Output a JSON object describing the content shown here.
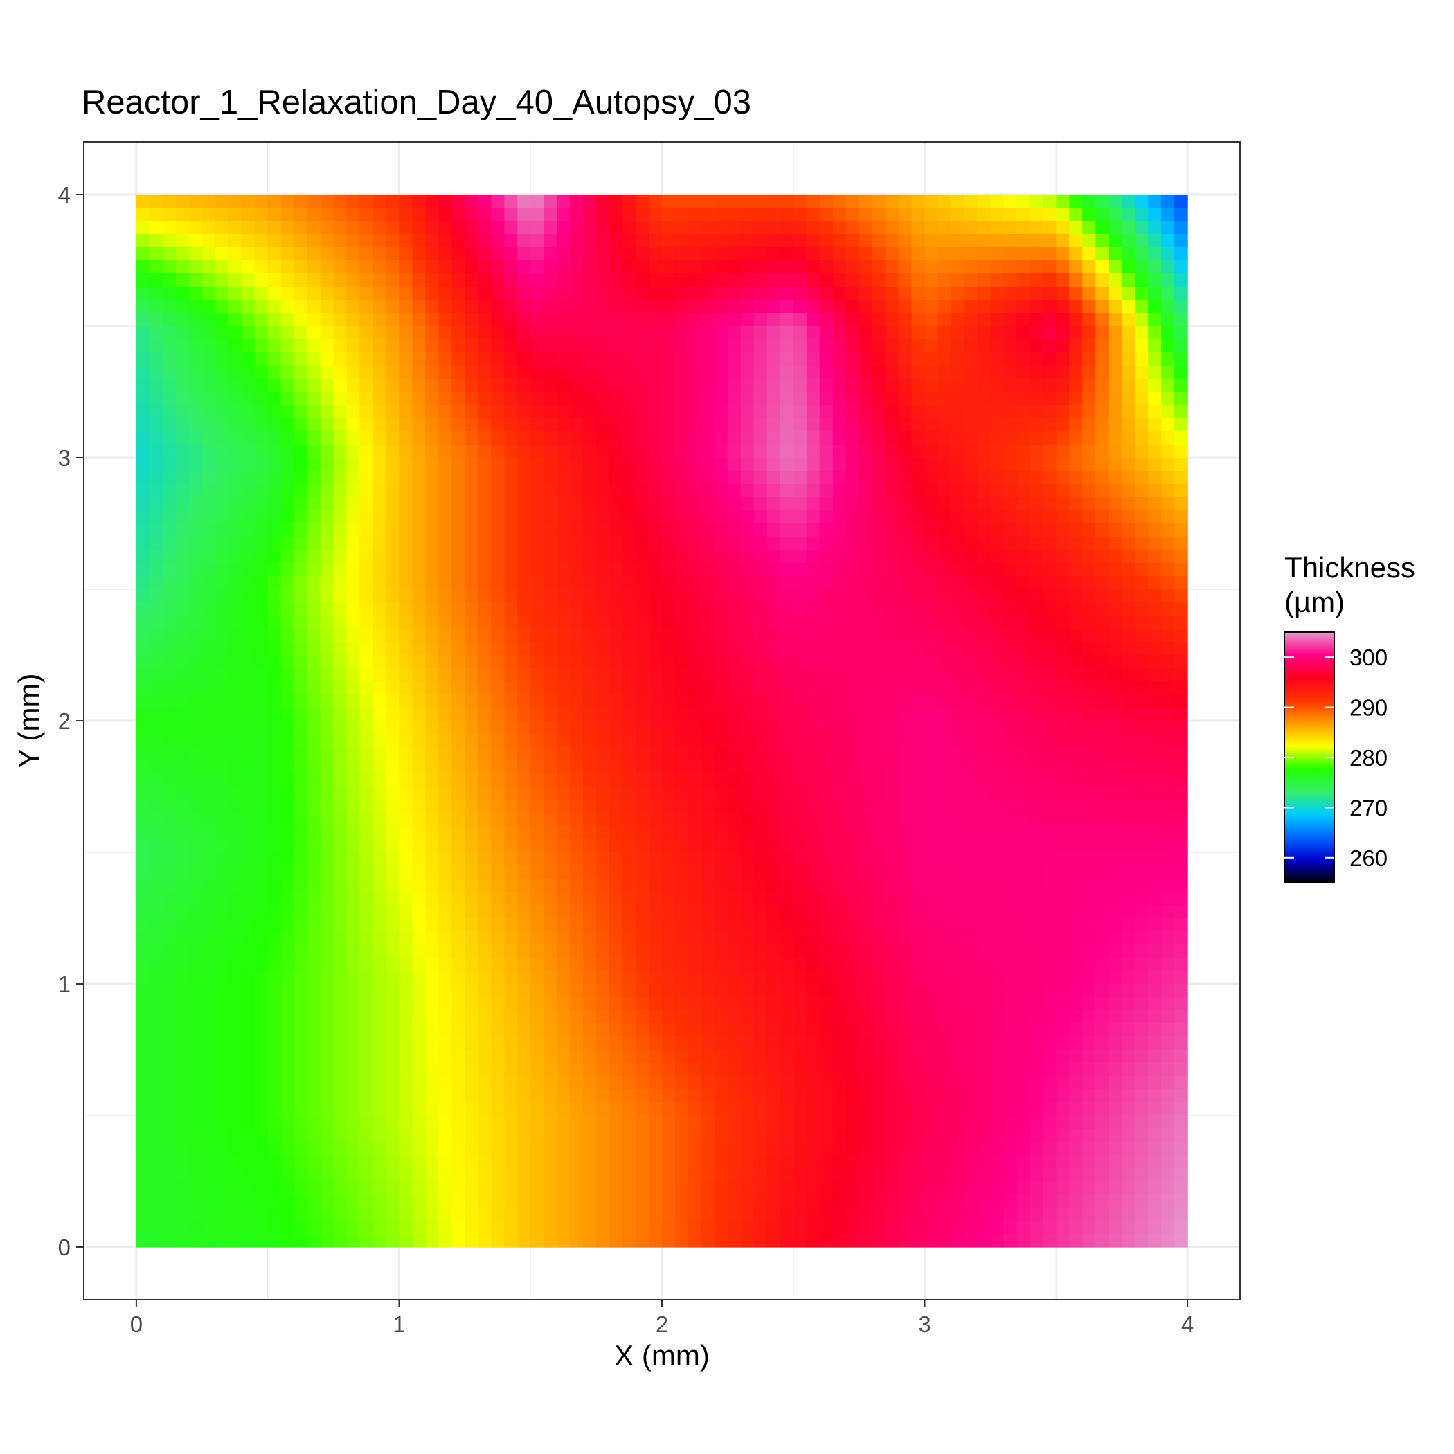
{
  "chart_data": {
    "type": "heatmap",
    "title": "Reactor_1_Relaxation_Day_40_Autopsy_03",
    "xlabel": "X (mm)",
    "ylabel": "Y (mm)",
    "xlim": [
      -0.2,
      4.2
    ],
    "ylim": [
      -0.2,
      4.2
    ],
    "x_ticks": [
      0,
      1,
      2,
      3,
      4
    ],
    "y_ticks": [
      0,
      1,
      2,
      3,
      4
    ],
    "x_tick_labels": [
      "0",
      "1",
      "2",
      "3",
      "4"
    ],
    "y_tick_labels": [
      "0",
      "1",
      "2",
      "3",
      "4"
    ],
    "grid": true,
    "legend": {
      "title_line1": "Thickness",
      "title_line2": "(µm)",
      "placement": "right",
      "range": [
        255,
        305
      ],
      "ticks": [
        260,
        270,
        280,
        290,
        300
      ],
      "tick_labels": [
        "260",
        "270",
        "280",
        "290",
        "300"
      ],
      "colors": [
        "#000000",
        "#0000cc",
        "#0066ff",
        "#00ccff",
        "#33ee66",
        "#22ff00",
        "#ffff00",
        "#ff9900",
        "#ff3300",
        "#ff0022",
        "#ff0088",
        "#e699cc"
      ]
    },
    "x": [
      0.0,
      0.5,
      1.0,
      1.5,
      2.0,
      2.5,
      3.0,
      3.5,
      4.0
    ],
    "y": [
      4.0,
      3.5,
      3.0,
      2.5,
      2.0,
      1.5,
      1.0,
      0.5,
      0.0
    ],
    "z": [
      [
        285,
        287,
        292,
        305,
        290,
        290,
        285,
        280,
        262
      ],
      [
        272,
        280,
        287,
        298,
        298,
        303,
        290,
        298,
        273
      ],
      [
        270,
        275,
        285,
        292,
        298,
        304,
        295,
        290,
        283
      ],
      [
        272,
        278,
        285,
        292,
        296,
        300,
        298,
        295,
        290
      ],
      [
        277,
        277,
        283,
        290,
        295,
        298,
        300,
        298,
        297
      ],
      [
        274,
        277,
        282,
        288,
        293,
        297,
        300,
        300,
        300
      ],
      [
        276,
        278,
        281,
        286,
        292,
        295,
        299,
        300,
        302
      ],
      [
        276,
        278,
        281,
        285,
        289,
        294,
        298,
        301,
        304
      ],
      [
        276,
        277,
        280,
        285,
        289,
        295,
        299,
        302,
        305
      ]
    ]
  }
}
